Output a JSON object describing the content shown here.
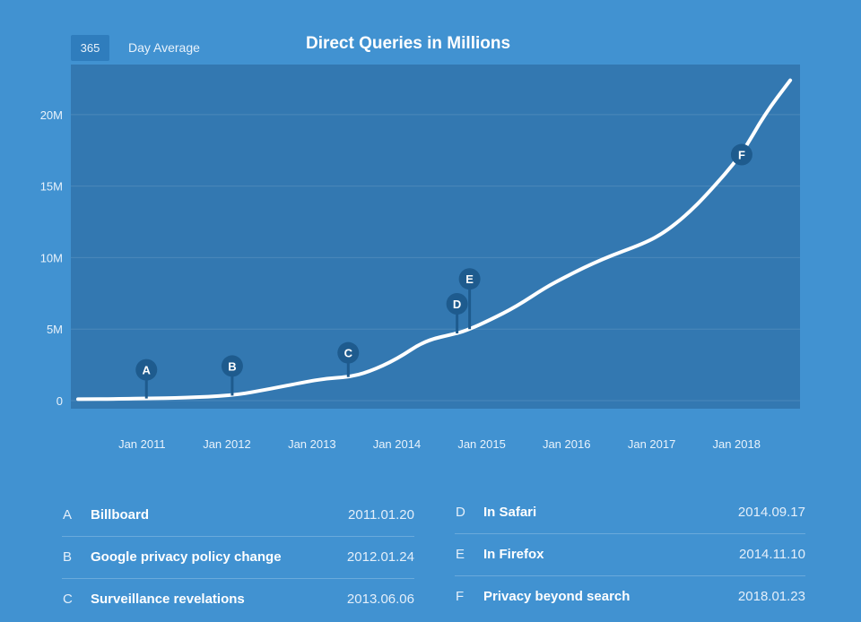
{
  "controls": {
    "average_value": "365",
    "average_label": "Day Average"
  },
  "chart_data": {
    "type": "line",
    "title": "Direct Queries in Millions",
    "xlabel": "",
    "ylabel": "",
    "x_ticks": [
      "Jan 2011",
      "Jan 2012",
      "Jan 2013",
      "Jan 2014",
      "Jan 2015",
      "Jan 2016",
      "Jan 2017",
      "Jan 2018"
    ],
    "y_ticks": [
      {
        "value": 0,
        "label": "0"
      },
      {
        "value": 5,
        "label": "5M"
      },
      {
        "value": 10,
        "label": "10M"
      },
      {
        "value": 15,
        "label": "15M"
      },
      {
        "value": 20,
        "label": "20M"
      }
    ],
    "ylim": [
      0,
      23.5
    ],
    "xlim": [
      "2010-03-01",
      "2018-10-01"
    ],
    "grid": true,
    "series": [
      {
        "points": [
          [
            "2010-04-01",
            0.1
          ],
          [
            "2010-10-01",
            0.12
          ],
          [
            "2011-01-20",
            0.15
          ],
          [
            "2011-07-01",
            0.2
          ],
          [
            "2012-01-24",
            0.35
          ],
          [
            "2012-07-01",
            0.8
          ],
          [
            "2012-12-01",
            1.3
          ],
          [
            "2013-03-01",
            1.55
          ],
          [
            "2013-06-06",
            1.65
          ],
          [
            "2013-09-01",
            2.0
          ],
          [
            "2014-01-01",
            2.9
          ],
          [
            "2014-05-01",
            4.2
          ],
          [
            "2014-09-17",
            4.7
          ],
          [
            "2014-11-10",
            5.0
          ],
          [
            "2015-02-01",
            5.6
          ],
          [
            "2015-06-01",
            6.6
          ],
          [
            "2015-10-01",
            7.9
          ],
          [
            "2016-01-01",
            8.7
          ],
          [
            "2016-06-01",
            9.9
          ],
          [
            "2016-12-01",
            11.0
          ],
          [
            "2017-03-01",
            11.8
          ],
          [
            "2017-06-01",
            13.0
          ],
          [
            "2017-09-01",
            14.5
          ],
          [
            "2018-01-23",
            17.2
          ],
          [
            "2018-05-01",
            20.0
          ],
          [
            "2018-08-20",
            22.4
          ]
        ]
      }
    ],
    "annotations": [
      {
        "letter": "A",
        "label": "Billboard",
        "date": "2011.01.20"
      },
      {
        "letter": "B",
        "label": "Google privacy policy change",
        "date": "2012.01.24"
      },
      {
        "letter": "C",
        "label": "Surveillance revelations",
        "date": "2013.06.06"
      },
      {
        "letter": "D",
        "label": "In Safari",
        "date": "2014.09.17"
      },
      {
        "letter": "E",
        "label": "In Firefox",
        "date": "2014.11.10"
      },
      {
        "letter": "F",
        "label": "Privacy beyond search",
        "date": "2018.01.23"
      }
    ]
  },
  "colors": {
    "page_background": "#4192d1",
    "plot_background": "#3378b1",
    "line": "#ffffff",
    "marker": "#1e5b8e"
  }
}
